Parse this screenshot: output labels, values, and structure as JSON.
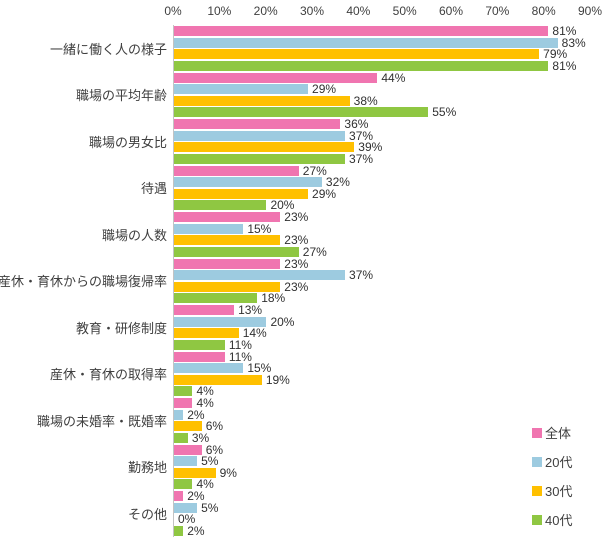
{
  "chart_data": {
    "type": "bar",
    "orientation": "horizontal",
    "title": "",
    "xlabel": "",
    "ylabel": "",
    "xlim": [
      0,
      90
    ],
    "x_ticks": [
      "0%",
      "10%",
      "20%",
      "30%",
      "40%",
      "50%",
      "60%",
      "70%",
      "80%",
      "90%"
    ],
    "grid": false,
    "axis_position": "top",
    "legend_position": "bottom-right",
    "data_labels": true,
    "value_suffix": "%",
    "categories": [
      "一緒に働く人の様子",
      "職場の平均年齢",
      "職場の男女比",
      "待遇",
      "職場の人数",
      "産休・育休からの職場復帰率",
      "教育・研修制度",
      "産休・育休の取得率",
      "職場の未婚率・既婚率",
      "勤務地",
      "その他"
    ],
    "series": [
      {
        "name": "全体",
        "color": "#F075B0",
        "values": [
          81,
          44,
          36,
          27,
          23,
          23,
          13,
          11,
          4,
          6,
          2
        ]
      },
      {
        "name": "20代",
        "color": "#9DCBE0",
        "values": [
          83,
          29,
          37,
          32,
          15,
          37,
          20,
          15,
          2,
          5,
          5
        ]
      },
      {
        "name": "30代",
        "color": "#FFC000",
        "values": [
          79,
          38,
          39,
          29,
          23,
          23,
          14,
          19,
          6,
          9,
          0
        ]
      },
      {
        "name": "40代",
        "color": "#8FC742",
        "values": [
          81,
          55,
          37,
          20,
          27,
          18,
          11,
          4,
          3,
          4,
          2
        ]
      }
    ],
    "colors": {
      "axis_line": "#c3c3c3",
      "text": "#3f3f3f"
    }
  }
}
